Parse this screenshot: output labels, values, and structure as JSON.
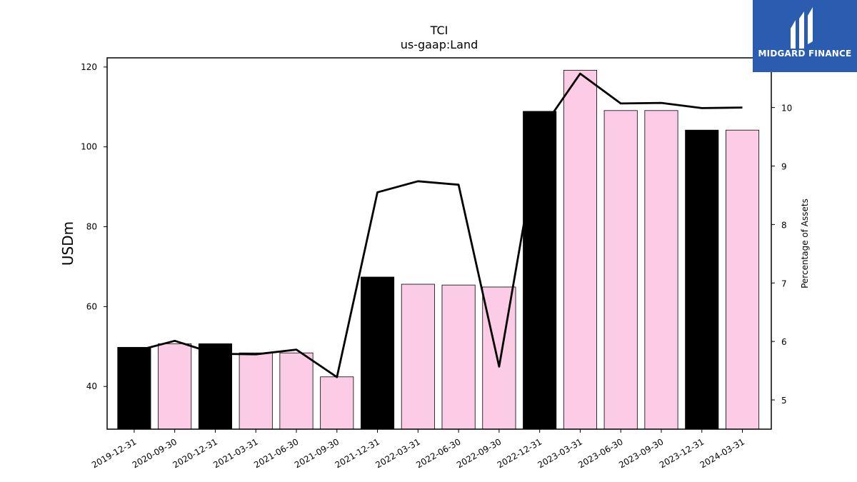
{
  "logo": {
    "text": "MIDGARD FINANCE",
    "bg_color": "#2a5db0"
  },
  "chart_data": {
    "type": "bar",
    "title": "TCI",
    "subtitle": "us-gaap:Land",
    "ylabel": "USDm",
    "y2label": "Percentage of Assets",
    "ylim": [
      29.3,
      122.3
    ],
    "y2lim": [
      4.5,
      10.85
    ],
    "yticks": [
      40,
      60,
      80,
      100,
      120
    ],
    "y2ticks": [
      5,
      6,
      7,
      8,
      9,
      10
    ],
    "categories": [
      "2019-12-31",
      "2020-09-30",
      "2020-12-31",
      "2021-03-31",
      "2021-06-30",
      "2021-09-30",
      "2021-12-31",
      "2022-03-31",
      "2022-06-30",
      "2022-09-30",
      "2022-12-31",
      "2023-03-31",
      "2023-06-30",
      "2023-09-30",
      "2023-12-31",
      "2024-03-31"
    ],
    "series": [
      {
        "type": "bar",
        "axis": "left",
        "values": [
          49.8,
          50.7,
          50.7,
          48.4,
          48.4,
          42.4,
          67.4,
          65.6,
          65.4,
          64.9,
          108.9,
          119.2,
          109.1,
          109.1,
          104.2,
          104.2
        ],
        "colors": [
          "#000000",
          "#fccce6",
          "#000000",
          "#fccce6",
          "#fccce6",
          "#fccce6",
          "#000000",
          "#fccce6",
          "#fccce6",
          "#fccce6",
          "#000000",
          "#fccce6",
          "#fccce6",
          "#fccce6",
          "#000000",
          "#fccce6"
        ]
      },
      {
        "type": "line",
        "axis": "right",
        "color": "#000000",
        "values": [
          5.83,
          6.01,
          5.79,
          5.78,
          5.86,
          5.39,
          8.55,
          8.74,
          8.68,
          5.57,
          9.58,
          10.58,
          10.07,
          10.08,
          9.99,
          10.0
        ]
      }
    ],
    "grid": false,
    "legend": "none"
  }
}
